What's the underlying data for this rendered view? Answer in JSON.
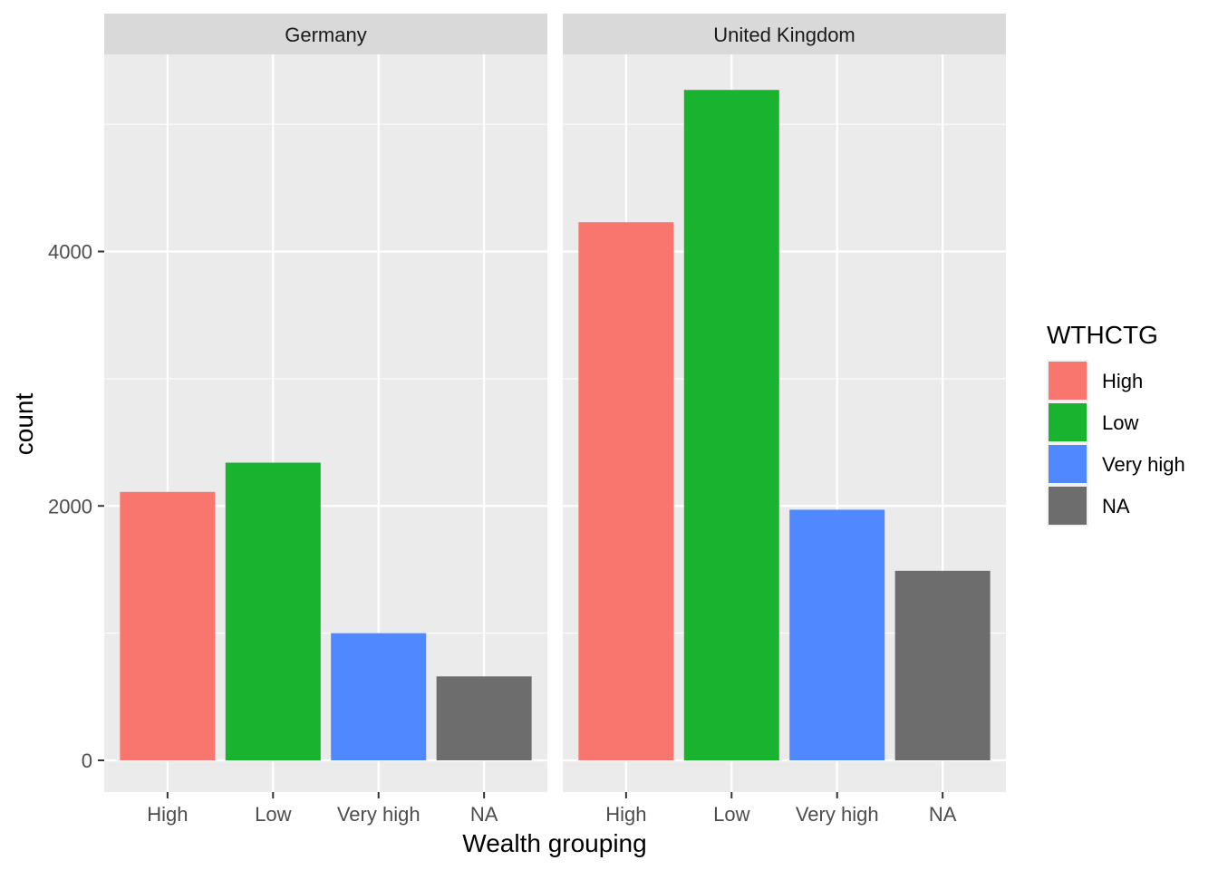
{
  "chart_data": {
    "type": "bar",
    "facets": [
      "Germany",
      "United Kingdom"
    ],
    "categories": [
      "High",
      "Low",
      "Very high",
      "NA"
    ],
    "values": {
      "Germany": [
        2110,
        2340,
        1000,
        660
      ],
      "United Kingdom": [
        4230,
        5270,
        1970,
        1490
      ]
    },
    "colors": [
      "#F8766D",
      "#1AB32F",
      "#4F88FF",
      "#6D6D6D"
    ],
    "xlabel": "Wealth grouping",
    "ylabel": "count",
    "ylim": [
      -250,
      5800
    ],
    "yticks": [
      0,
      2000,
      4000
    ],
    "ytick_labels": [
      "0",
      "2000",
      "4000"
    ],
    "grid": true,
    "legend": {
      "title": "WTHCTG",
      "position": "right",
      "items": [
        "High",
        "Low",
        "Very high",
        "NA"
      ]
    }
  }
}
